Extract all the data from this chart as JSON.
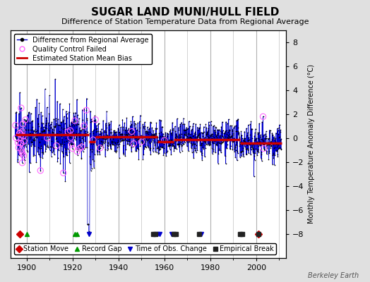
{
  "title": "SUGAR LAND MUNI/HULL FIELD",
  "subtitle": "Difference of Station Temperature Data from Regional Average",
  "ylabel": "Monthly Temperature Anomaly Difference (°C)",
  "xlim": [
    1893,
    2013
  ],
  "ylim": [
    -10,
    9
  ],
  "yticks": [
    -8,
    -6,
    -4,
    -2,
    0,
    2,
    4,
    6,
    8
  ],
  "xticks": [
    1900,
    1920,
    1940,
    1960,
    1980,
    2000
  ],
  "background_color": "#e0e0e0",
  "plot_bg_color": "#ffffff",
  "grid_color": "#b0b0b0",
  "data_line_color": "#0000cc",
  "data_dot_color": "#000000",
  "bias_line_color": "#cc0000",
  "qc_marker_color": "#ff66ff",
  "station_move_color": "#cc0000",
  "record_gap_color": "#009900",
  "time_obs_color": "#0000cc",
  "empirical_break_color": "#222222",
  "seed": 42,
  "start_year": 1895,
  "end_year": 2011,
  "bias_segments": [
    {
      "start": 1895,
      "end": 1927,
      "value": 0.3
    },
    {
      "start": 1927,
      "end": 1930,
      "value": -0.3
    },
    {
      "start": 1930,
      "end": 1957,
      "value": 0.1
    },
    {
      "start": 1957,
      "end": 1964,
      "value": -0.3
    },
    {
      "start": 1964,
      "end": 1993,
      "value": -0.1
    },
    {
      "start": 1993,
      "end": 2011,
      "value": -0.4
    }
  ],
  "station_moves": [
    1897,
    2001
  ],
  "record_gaps": [
    1900,
    1921,
    1922
  ],
  "time_obs_changes": [
    1927,
    1957,
    1958,
    1963,
    1976
  ],
  "empirical_breaks": [
    1955,
    1956,
    1964,
    1965,
    1975,
    1993,
    1994,
    2001
  ],
  "qc_fail_indices_early": [
    2,
    5,
    15,
    18,
    22,
    25,
    28,
    30,
    31,
    32,
    33,
    35,
    36,
    37,
    38,
    40,
    42,
    44,
    46,
    290,
    295,
    610,
    620,
    1300
  ],
  "title_fontsize": 11,
  "subtitle_fontsize": 8,
  "tick_fontsize": 8,
  "label_fontsize": 7,
  "legend_fontsize": 7,
  "watermark": "Berkeley Earth"
}
